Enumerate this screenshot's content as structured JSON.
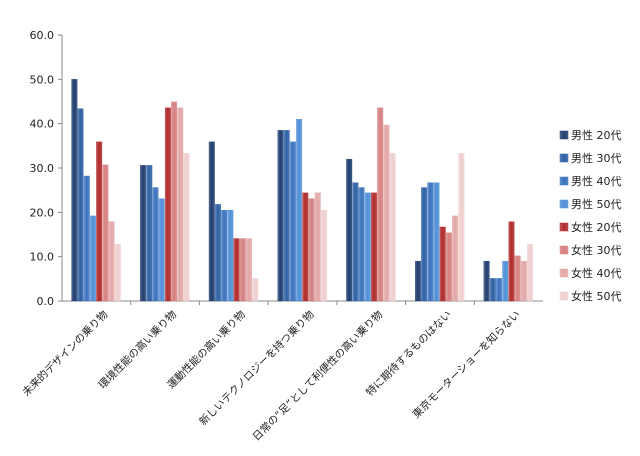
{
  "chart_data": {
    "type": "bar",
    "ylim": [
      0,
      60
    ],
    "yticks": [
      "0.0",
      "10.0",
      "20.0",
      "30.0",
      "40.0",
      "50.0",
      "60.0"
    ],
    "grid": false,
    "legend_position": "right",
    "categories": [
      "未来的デザインの乗り物",
      "環境性能の高い乗り物",
      "運動性能の高い乗り物",
      "新しいテクノロジーを持つ乗り物",
      "日常の“足”として利便性の高い乗り物",
      "特に期待するものはない",
      "東京モーターショーを知らない"
    ],
    "series": [
      {
        "name": "男性 20代",
        "color": "#1f3d6e",
        "values": [
          50.0,
          30.6,
          35.9,
          38.5,
          32.0,
          9.0,
          9.0
        ]
      },
      {
        "name": "男性 30代",
        "color": "#2c5fa3",
        "values": [
          43.4,
          30.6,
          21.8,
          38.5,
          26.7,
          25.6,
          5.1
        ]
      },
      {
        "name": "男性 40代",
        "color": "#3a72bd",
        "values": [
          28.2,
          25.6,
          20.5,
          35.9,
          25.6,
          26.7,
          5.1
        ]
      },
      {
        "name": "男性 50代",
        "color": "#4f8fd6",
        "values": [
          19.2,
          23.1,
          20.5,
          41.0,
          24.4,
          26.7,
          9.0
        ]
      },
      {
        "name": "女性 20代",
        "color": "#b02a2a",
        "values": [
          35.9,
          43.6,
          14.1,
          24.4,
          24.4,
          16.7,
          17.9
        ]
      },
      {
        "name": "女性 30代",
        "color": "#d68080",
        "values": [
          30.7,
          44.9,
          14.1,
          23.1,
          43.6,
          15.4,
          10.2
        ]
      },
      {
        "name": "女性 40代",
        "color": "#e3a7a7",
        "values": [
          17.9,
          43.6,
          14.1,
          24.4,
          39.7,
          19.2,
          9.0
        ]
      },
      {
        "name": "女性 50代",
        "color": "#efcfcf",
        "values": [
          12.8,
          33.3,
          5.1,
          20.5,
          33.3,
          33.3,
          12.8
        ]
      }
    ]
  }
}
